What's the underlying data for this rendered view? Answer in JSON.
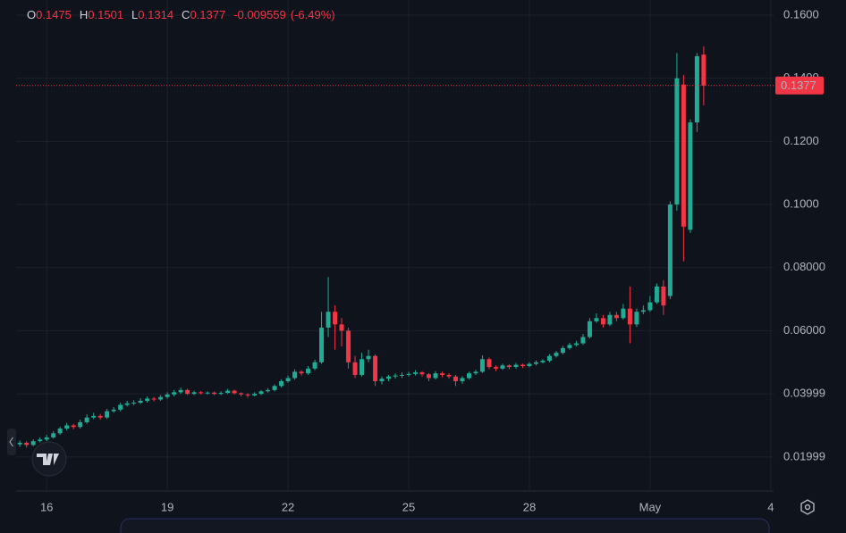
{
  "header": {
    "items": [
      {
        "label": "O",
        "value": "0.1475"
      },
      {
        "label": "H",
        "value": "0.1501"
      },
      {
        "label": "L",
        "value": "0.1314"
      },
      {
        "label": "C",
        "value": "0.1377"
      }
    ],
    "change": "-0.009559",
    "change_pct": "(-6.49%)"
  },
  "chart_data": {
    "type": "candlestick",
    "up_color": "#22ab94",
    "down_color": "#f23645",
    "grid": true,
    "xlim": [
      15.24,
      34.07
    ],
    "xticks": [
      16,
      19,
      22,
      25,
      28,
      {
        "value": 31,
        "label": "May"
      },
      {
        "value": 34,
        "label": "4"
      }
    ],
    "ylim": [
      0.0092,
      0.1648
    ],
    "yticks": [
      {
        "value": 0.16,
        "label": "0.1600"
      },
      {
        "value": 0.14,
        "label": "0.1400"
      },
      {
        "value": 0.12,
        "label": "0.1200"
      },
      {
        "value": 0.1,
        "label": "0.1000"
      },
      {
        "value": 0.08,
        "label": "0.08000"
      },
      {
        "value": 0.06,
        "label": "0.06000"
      },
      0.03999,
      0.01999
    ],
    "last_price": 0.1377,
    "x": [
      15.333,
      15.5,
      15.667,
      15.833,
      16,
      16.167,
      16.333,
      16.5,
      16.667,
      16.833,
      17,
      17.167,
      17.333,
      17.5,
      17.667,
      17.833,
      18,
      18.167,
      18.333,
      18.5,
      18.667,
      18.833,
      19,
      19.167,
      19.333,
      19.5,
      19.667,
      19.833,
      20,
      20.167,
      20.333,
      20.5,
      20.667,
      20.833,
      21,
      21.167,
      21.333,
      21.5,
      21.667,
      21.833,
      22,
      22.167,
      22.333,
      22.5,
      22.667,
      22.833,
      23,
      23.167,
      23.333,
      23.5,
      23.667,
      23.833,
      24,
      24.167,
      24.333,
      24.5,
      24.667,
      24.833,
      25,
      25.167,
      25.333,
      25.5,
      25.667,
      25.833,
      26,
      26.167,
      26.333,
      26.5,
      26.667,
      26.833,
      27,
      27.167,
      27.333,
      27.5,
      27.667,
      27.833,
      28,
      28.167,
      28.333,
      28.5,
      28.667,
      28.833,
      29,
      29.167,
      29.333,
      29.5,
      29.667,
      29.833,
      30,
      30.167,
      30.333,
      30.5,
      30.667,
      30.833,
      31,
      31.167,
      31.333,
      31.5,
      31.667,
      31.833,
      32,
      32.167,
      32.333
    ],
    "candles": [
      [
        0.024,
        0.0252,
        0.0232,
        0.0245
      ],
      [
        0.0245,
        0.025,
        0.023,
        0.0238
      ],
      [
        0.0238,
        0.0256,
        0.0234,
        0.025
      ],
      [
        0.025,
        0.0262,
        0.0246,
        0.0255
      ],
      [
        0.0255,
        0.027,
        0.025,
        0.0262
      ],
      [
        0.0262,
        0.0282,
        0.0258,
        0.0275
      ],
      [
        0.0275,
        0.0296,
        0.027,
        0.029
      ],
      [
        0.029,
        0.0308,
        0.0284,
        0.03
      ],
      [
        0.03,
        0.0305,
        0.0288,
        0.0295
      ],
      [
        0.0295,
        0.0318,
        0.029,
        0.031
      ],
      [
        0.031,
        0.0335,
        0.0305,
        0.0325
      ],
      [
        0.0325,
        0.034,
        0.032,
        0.033
      ],
      [
        0.033,
        0.0336,
        0.0318,
        0.0325
      ],
      [
        0.0325,
        0.0352,
        0.032,
        0.0345
      ],
      [
        0.0345,
        0.0358,
        0.034,
        0.035
      ],
      [
        0.035,
        0.0372,
        0.0345,
        0.0365
      ],
      [
        0.0365,
        0.0378,
        0.036,
        0.037
      ],
      [
        0.037,
        0.038,
        0.0364,
        0.0372
      ],
      [
        0.0372,
        0.0386,
        0.0368,
        0.0378
      ],
      [
        0.0378,
        0.0392,
        0.0372,
        0.0385
      ],
      [
        0.0385,
        0.039,
        0.0376,
        0.0382
      ],
      [
        0.0382,
        0.0396,
        0.0378,
        0.039
      ],
      [
        0.039,
        0.0405,
        0.0385,
        0.0398
      ],
      [
        0.0398,
        0.0412,
        0.0392,
        0.0405
      ],
      [
        0.0405,
        0.042,
        0.04,
        0.0412
      ],
      [
        0.0412,
        0.0416,
        0.0396,
        0.04
      ],
      [
        0.04,
        0.041,
        0.0396,
        0.0405
      ],
      [
        0.0405,
        0.0409,
        0.0398,
        0.0402
      ],
      [
        0.0402,
        0.0408,
        0.0398,
        0.0404
      ],
      [
        0.0404,
        0.0407,
        0.0396,
        0.04
      ],
      [
        0.04,
        0.0408,
        0.0396,
        0.0403
      ],
      [
        0.0403,
        0.0416,
        0.04,
        0.041
      ],
      [
        0.041,
        0.0413,
        0.0398,
        0.0402
      ],
      [
        0.0402,
        0.0405,
        0.0392,
        0.0398
      ],
      [
        0.0398,
        0.0402,
        0.0388,
        0.0395
      ],
      [
        0.0395,
        0.0405,
        0.0392,
        0.04
      ],
      [
        0.04,
        0.0412,
        0.0396,
        0.0408
      ],
      [
        0.0408,
        0.0418,
        0.0404,
        0.0412
      ],
      [
        0.0412,
        0.043,
        0.0408,
        0.0425
      ],
      [
        0.0425,
        0.0446,
        0.042,
        0.044
      ],
      [
        0.044,
        0.0458,
        0.0435,
        0.045
      ],
      [
        0.045,
        0.0478,
        0.0445,
        0.047
      ],
      [
        0.047,
        0.0475,
        0.0458,
        0.0465
      ],
      [
        0.0465,
        0.0488,
        0.046,
        0.048
      ],
      [
        0.048,
        0.0508,
        0.0475,
        0.05
      ],
      [
        0.05,
        0.066,
        0.0495,
        0.061
      ],
      [
        0.061,
        0.077,
        0.058,
        0.066
      ],
      [
        0.066,
        0.068,
        0.054,
        0.062
      ],
      [
        0.062,
        0.064,
        0.055,
        0.06
      ],
      [
        0.06,
        0.061,
        0.048,
        0.05
      ],
      [
        0.05,
        0.052,
        0.045,
        0.046
      ],
      [
        0.046,
        0.053,
        0.0455,
        0.051
      ],
      [
        0.051,
        0.054,
        0.05,
        0.052
      ],
      [
        0.052,
        0.0525,
        0.0425,
        0.044
      ],
      [
        0.044,
        0.0455,
        0.043,
        0.0448
      ],
      [
        0.0448,
        0.046,
        0.044,
        0.0455
      ],
      [
        0.0455,
        0.0465,
        0.0448,
        0.0458
      ],
      [
        0.0458,
        0.0468,
        0.045,
        0.046
      ],
      [
        0.046,
        0.047,
        0.0455,
        0.0463
      ],
      [
        0.0463,
        0.0475,
        0.0458,
        0.0468
      ],
      [
        0.0468,
        0.0472,
        0.0455,
        0.0462
      ],
      [
        0.0462,
        0.0466,
        0.044,
        0.045
      ],
      [
        0.045,
        0.0472,
        0.0446,
        0.0465
      ],
      [
        0.0465,
        0.047,
        0.0452,
        0.046
      ],
      [
        0.046,
        0.0465,
        0.0448,
        0.0455
      ],
      [
        0.0455,
        0.046,
        0.0425,
        0.044
      ],
      [
        0.044,
        0.0456,
        0.0432,
        0.045
      ],
      [
        0.045,
        0.047,
        0.0446,
        0.0465
      ],
      [
        0.0465,
        0.0476,
        0.046,
        0.047
      ],
      [
        0.047,
        0.0522,
        0.0466,
        0.051
      ],
      [
        0.051,
        0.0515,
        0.0478,
        0.0485
      ],
      [
        0.0485,
        0.049,
        0.0472,
        0.048
      ],
      [
        0.048,
        0.0496,
        0.0476,
        0.049
      ],
      [
        0.049,
        0.0494,
        0.0478,
        0.0485
      ],
      [
        0.0485,
        0.0498,
        0.048,
        0.0492
      ],
      [
        0.0492,
        0.0496,
        0.0482,
        0.0488
      ],
      [
        0.0488,
        0.05,
        0.0484,
        0.0495
      ],
      [
        0.0495,
        0.0506,
        0.049,
        0.05
      ],
      [
        0.05,
        0.051,
        0.0496,
        0.0505
      ],
      [
        0.0505,
        0.0526,
        0.05,
        0.052
      ],
      [
        0.052,
        0.0536,
        0.0515,
        0.053
      ],
      [
        0.053,
        0.0552,
        0.0525,
        0.0545
      ],
      [
        0.0545,
        0.0562,
        0.054,
        0.0555
      ],
      [
        0.0555,
        0.0568,
        0.055,
        0.056
      ],
      [
        0.056,
        0.059,
        0.0555,
        0.058
      ],
      [
        0.058,
        0.064,
        0.0575,
        0.063
      ],
      [
        0.063,
        0.0655,
        0.0625,
        0.064
      ],
      [
        0.064,
        0.065,
        0.061,
        0.062
      ],
      [
        0.062,
        0.066,
        0.0615,
        0.065
      ],
      [
        0.065,
        0.066,
        0.063,
        0.064
      ],
      [
        0.064,
        0.0685,
        0.0635,
        0.067
      ],
      [
        0.067,
        0.074,
        0.056,
        0.062
      ],
      [
        0.062,
        0.067,
        0.0612,
        0.066
      ],
      [
        0.066,
        0.068,
        0.0652,
        0.0665
      ],
      [
        0.0665,
        0.071,
        0.066,
        0.069
      ],
      [
        0.069,
        0.075,
        0.0685,
        0.074
      ],
      [
        0.074,
        0.076,
        0.065,
        0.068
      ],
      [
        0.071,
        0.101,
        0.07,
        0.1
      ],
      [
        0.1,
        0.148,
        0.098,
        0.14
      ],
      [
        0.138,
        0.141,
        0.082,
        0.093
      ],
      [
        0.092,
        0.127,
        0.091,
        0.126
      ],
      [
        0.126,
        0.148,
        0.123,
        0.147
      ],
      [
        0.1475,
        0.1501,
        0.1314,
        0.1377
      ]
    ]
  }
}
